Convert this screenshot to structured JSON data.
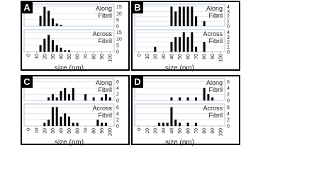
{
  "chart_data": [
    {
      "type": "bar",
      "panel": "A",
      "title": [
        "Along",
        "Fibril"
      ],
      "x": [
        15,
        20,
        25,
        30,
        35,
        40
      ],
      "values": [
        8,
        15,
        12,
        6,
        2,
        1
      ],
      "xlim": [
        -5,
        105
      ],
      "xticks": [
        0,
        10,
        20,
        30,
        40,
        50,
        60,
        70,
        80,
        90,
        100
      ],
      "ylim": [
        0,
        17
      ],
      "yticks": [
        0,
        5,
        10,
        15
      ],
      "color": "#000000"
    },
    {
      "type": "bar",
      "title": [
        "Across",
        "Fibril"
      ],
      "xlabel": "size (nm)",
      "x": [
        15,
        20,
        25,
        30,
        35,
        40,
        45,
        50
      ],
      "values": [
        5,
        10,
        13,
        9,
        5,
        3,
        1,
        1
      ],
      "xlim": [
        -5,
        105
      ],
      "xticks": [
        0,
        10,
        20,
        30,
        40,
        50,
        60,
        70,
        80,
        90,
        100
      ],
      "ylim": [
        0,
        17
      ],
      "yticks": [
        0,
        5,
        10,
        15
      ],
      "color": "#000000"
    },
    {
      "type": "bar",
      "panel": "B",
      "title": [
        "Along",
        "Fibril"
      ],
      "x": [
        40,
        45,
        50,
        55,
        60,
        65,
        70,
        80
      ],
      "values": [
        4,
        3,
        4,
        4,
        4,
        4,
        2,
        1
      ],
      "xlim": [
        -5,
        105
      ],
      "xticks": [
        0,
        10,
        20,
        30,
        40,
        50,
        60,
        70,
        80,
        90,
        100
      ],
      "ylim": [
        0,
        4.5
      ],
      "yticks": [
        0,
        1,
        2,
        3,
        4
      ],
      "color": "#000000"
    },
    {
      "type": "bar",
      "title": [
        "Across",
        "Fibril"
      ],
      "xlabel": "size (nm)",
      "x": [
        20,
        40,
        45,
        50,
        55,
        60,
        65,
        70,
        80
      ],
      "values": [
        1,
        2,
        3,
        3,
        4,
        3,
        4,
        1,
        2
      ],
      "xlim": [
        -5,
        105
      ],
      "xticks": [
        0,
        10,
        20,
        30,
        40,
        50,
        60,
        70,
        80,
        90,
        100
      ],
      "ylim": [
        0,
        4.5
      ],
      "yticks": [
        0,
        1,
        2,
        3,
        4
      ],
      "color": "#000000"
    },
    {
      "type": "bar",
      "panel": "C",
      "title": [
        "Along",
        "Fibril"
      ],
      "x": [
        25,
        30,
        35,
        40,
        45,
        50,
        55,
        70,
        80,
        90,
        95,
        100
      ],
      "values": [
        1,
        2,
        1,
        3,
        4,
        2,
        4,
        2,
        1,
        1,
        2,
        1
      ],
      "xlim": [
        -5,
        105
      ],
      "xticks": [
        0,
        10,
        20,
        30,
        40,
        50,
        60,
        70,
        80,
        90,
        100
      ],
      "ylim": [
        0,
        7
      ],
      "yticks": [
        0,
        2,
        4,
        6
      ],
      "color": "#000000"
    },
    {
      "type": "bar",
      "title": [
        "Across",
        "Fibril"
      ],
      "xlabel": "size (nm)",
      "x": [
        20,
        25,
        30,
        35,
        40,
        45,
        50,
        55,
        60,
        85,
        90,
        95
      ],
      "values": [
        1,
        2,
        6,
        6,
        3,
        4,
        3,
        1,
        1,
        2,
        1,
        1
      ],
      "xlim": [
        -5,
        105
      ],
      "xticks": [
        0,
        10,
        20,
        30,
        40,
        50,
        60,
        70,
        80,
        90,
        100
      ],
      "ylim": [
        0,
        7
      ],
      "yticks": [
        0,
        2,
        4,
        6
      ],
      "color": "#000000"
    },
    {
      "type": "bar",
      "panel": "D",
      "title": [
        "Along",
        "Fibril"
      ],
      "x": [
        40,
        50,
        60,
        70,
        80,
        85,
        90
      ],
      "values": [
        1,
        1,
        1,
        1,
        4,
        2,
        1
      ],
      "xlim": [
        -5,
        105
      ],
      "xticks": [
        0,
        10,
        20,
        30,
        40,
        50,
        60,
        70,
        80,
        90,
        100
      ],
      "ylim": [
        0,
        7
      ],
      "yticks": [
        0,
        2,
        4,
        6
      ],
      "color": "#000000"
    },
    {
      "type": "bar",
      "title": [
        "Across",
        "Fibril"
      ],
      "xlabel": "size (nm)",
      "x": [
        25,
        30,
        35,
        40,
        45,
        50,
        60,
        70
      ],
      "values": [
        1,
        1,
        1,
        6,
        2,
        1,
        1,
        1
      ],
      "xlim": [
        -5,
        105
      ],
      "xticks": [
        0,
        10,
        20,
        30,
        40,
        50,
        60,
        70,
        80,
        90,
        100
      ],
      "ylim": [
        0,
        7
      ],
      "yticks": [
        0,
        2,
        4,
        6
      ],
      "color": "#000000"
    }
  ]
}
